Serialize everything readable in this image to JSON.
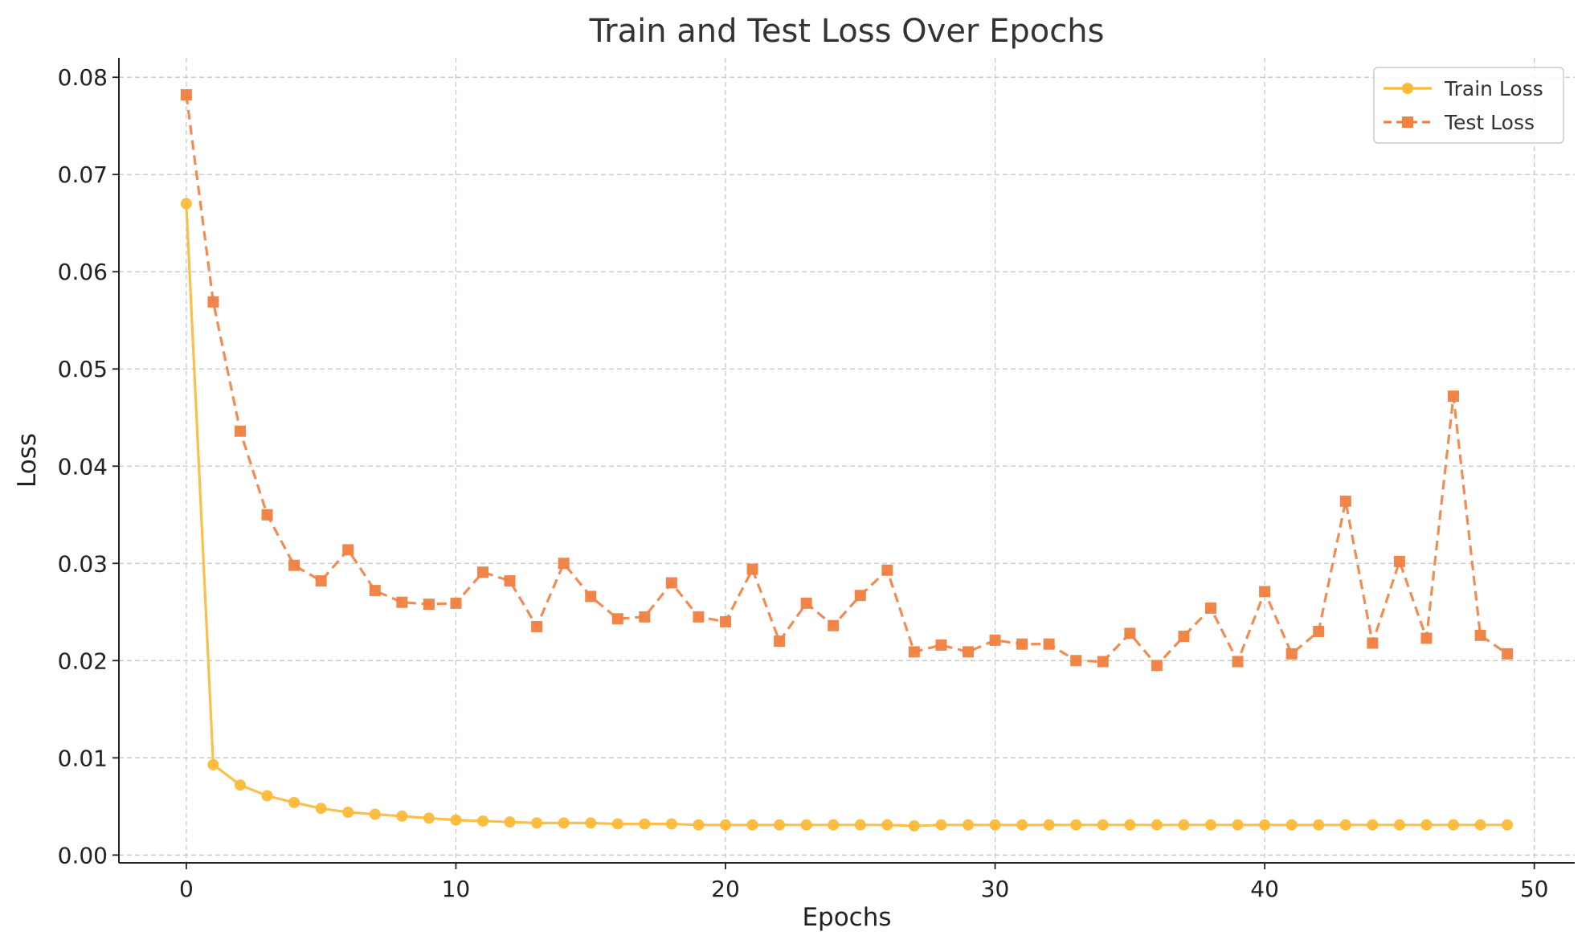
{
  "chart_data": {
    "type": "line",
    "title": "Train and Test Loss Over Epochs",
    "xlabel": "Epochs",
    "ylabel": "Loss",
    "xlim": [
      -2.5,
      51.5
    ],
    "ylim": [
      -0.0008,
      0.082
    ],
    "xticks": [
      0,
      10,
      20,
      30,
      40,
      50
    ],
    "xtick_labels": [
      "0",
      "10",
      "20",
      "30",
      "40",
      "50"
    ],
    "yticks": [
      0.0,
      0.01,
      0.02,
      0.03,
      0.04,
      0.05,
      0.06,
      0.07,
      0.08
    ],
    "ytick_labels": [
      "0.00",
      "0.01",
      "0.02",
      "0.03",
      "0.04",
      "0.05",
      "0.06",
      "0.07",
      "0.08"
    ],
    "grid": true,
    "legend_position": "top-right",
    "x": [
      0,
      1,
      2,
      3,
      4,
      5,
      6,
      7,
      8,
      9,
      10,
      11,
      12,
      13,
      14,
      15,
      16,
      17,
      18,
      19,
      20,
      21,
      22,
      23,
      24,
      25,
      26,
      27,
      28,
      29,
      30,
      31,
      32,
      33,
      34,
      35,
      36,
      37,
      38,
      39,
      40,
      41,
      42,
      43,
      44,
      45,
      46,
      47,
      48,
      49
    ],
    "series": [
      {
        "name": "Train Loss",
        "color": "#FBB938",
        "line_style": "solid",
        "marker": "circle",
        "values": [
          0.067,
          0.0093,
          0.0072,
          0.0061,
          0.0054,
          0.0048,
          0.0044,
          0.0042,
          0.004,
          0.0038,
          0.0036,
          0.0035,
          0.0034,
          0.0033,
          0.0033,
          0.0033,
          0.0032,
          0.0032,
          0.0032,
          0.0031,
          0.0031,
          0.0031,
          0.0031,
          0.0031,
          0.0031,
          0.0031,
          0.0031,
          0.003,
          0.0031,
          0.0031,
          0.0031,
          0.0031,
          0.0031,
          0.0031,
          0.0031,
          0.0031,
          0.0031,
          0.0031,
          0.0031,
          0.0031,
          0.0031,
          0.0031,
          0.0031,
          0.0031,
          0.0031,
          0.0031,
          0.0031,
          0.0031,
          0.0031,
          0.0031
        ]
      },
      {
        "name": "Test Loss",
        "color": "#F08040",
        "line_style": "dashed",
        "marker": "square",
        "values": [
          0.0782,
          0.0569,
          0.0436,
          0.035,
          0.0298,
          0.0282,
          0.0314,
          0.0272,
          0.026,
          0.0258,
          0.0259,
          0.0291,
          0.0282,
          0.0235,
          0.03,
          0.0266,
          0.0243,
          0.0245,
          0.028,
          0.0245,
          0.024,
          0.0294,
          0.022,
          0.0259,
          0.0236,
          0.0267,
          0.0293,
          0.0209,
          0.0216,
          0.0209,
          0.0221,
          0.0217,
          0.0217,
          0.02,
          0.0199,
          0.0228,
          0.0195,
          0.0225,
          0.0254,
          0.0199,
          0.0271,
          0.0207,
          0.023,
          0.0364,
          0.0218,
          0.0302,
          0.0223,
          0.0472,
          0.0226,
          0.0207
        ]
      }
    ]
  }
}
